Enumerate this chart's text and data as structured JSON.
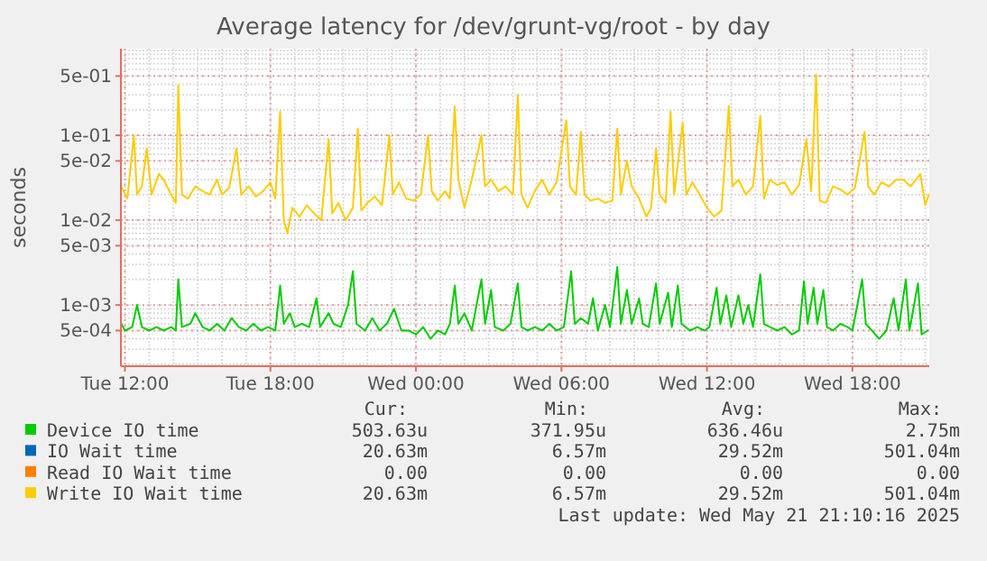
{
  "chart_data": {
    "type": "line",
    "title": "Average latency for /dev/grunt-vg/root - by day",
    "ylabel": "seconds",
    "log": "y",
    "grid": true,
    "legend": "bottom",
    "line_style": "solid",
    "marker": "none",
    "xlim": [
      "2025-05-20T11:50",
      "2025-05-21T21:10"
    ],
    "xticks": [
      {
        "value": "2025-05-20T12:00",
        "label": "Tue 12:00"
      },
      {
        "value": "2025-05-20T18:00",
        "label": "Tue 18:00"
      },
      {
        "value": "2025-05-21T00:00",
        "label": "Wed 00:00"
      },
      {
        "value": "2025-05-21T06:00",
        "label": "Wed 06:00"
      },
      {
        "value": "2025-05-21T12:00",
        "label": "Wed 12:00"
      },
      {
        "value": "2025-05-21T18:00",
        "label": "Wed 18:00"
      }
    ],
    "ylim": [
      0.00019,
      1.05
    ],
    "yticks": [
      {
        "value": 0.0005,
        "label": "5e-04"
      },
      {
        "value": 0.001,
        "label": "1e-03"
      },
      {
        "value": 0.005,
        "label": "5e-03"
      },
      {
        "value": 0.01,
        "label": "1e-02"
      },
      {
        "value": 0.05,
        "label": "5e-02"
      },
      {
        "value": 0.1,
        "label": "1e-01"
      },
      {
        "value": 0.5,
        "label": "5e-01"
      }
    ],
    "series": [
      {
        "name": "Device IO time",
        "color": "#00cc00",
        "x": [
          "2025-05-20T11:51",
          "2025-05-20T12:00",
          "2025-05-20T12:18",
          "2025-05-20T12:30",
          "2025-05-20T12:42",
          "2025-05-20T13:00",
          "2025-05-20T13:18",
          "2025-05-20T13:36",
          "2025-05-20T13:54",
          "2025-05-20T14:06",
          "2025-05-20T14:12",
          "2025-05-20T14:21",
          "2025-05-20T14:42",
          "2025-05-20T14:54",
          "2025-05-20T15:12",
          "2025-05-20T15:30",
          "2025-05-20T15:48",
          "2025-05-20T16:06",
          "2025-05-20T16:24",
          "2025-05-20T16:42",
          "2025-05-20T17:00",
          "2025-05-20T17:18",
          "2025-05-20T17:36",
          "2025-05-20T17:54",
          "2025-05-20T18:12",
          "2025-05-20T18:24",
          "2025-05-20T18:33",
          "2025-05-20T18:48",
          "2025-05-20T19:00",
          "2025-05-20T19:18",
          "2025-05-20T19:36",
          "2025-05-20T19:54",
          "2025-05-20T20:03",
          "2025-05-20T20:24",
          "2025-05-20T20:36",
          "2025-05-20T20:54",
          "2025-05-20T21:12",
          "2025-05-20T21:24",
          "2025-05-20T21:33",
          "2025-05-20T21:54",
          "2025-05-20T22:12",
          "2025-05-20T22:30",
          "2025-05-20T22:48",
          "2025-05-20T23:06",
          "2025-05-20T23:24",
          "2025-05-20T23:42",
          "2025-05-21T00:00",
          "2025-05-21T00:18",
          "2025-05-21T00:36",
          "2025-05-21T00:54",
          "2025-05-21T01:12",
          "2025-05-21T01:24",
          "2025-05-21T01:36",
          "2025-05-21T01:45",
          "2025-05-21T02:00",
          "2025-05-21T02:18",
          "2025-05-21T02:42",
          "2025-05-21T02:51",
          "2025-05-21T03:06",
          "2025-05-21T03:15",
          "2025-05-21T03:36",
          "2025-05-21T03:54",
          "2025-05-21T04:12",
          "2025-05-21T04:21",
          "2025-05-21T04:36",
          "2025-05-21T04:54",
          "2025-05-21T05:12",
          "2025-05-21T05:30",
          "2025-05-21T05:48",
          "2025-05-21T06:06",
          "2025-05-21T06:24",
          "2025-05-21T06:33",
          "2025-05-21T06:48",
          "2025-05-21T07:06",
          "2025-05-21T07:18",
          "2025-05-21T07:30",
          "2025-05-21T07:48",
          "2025-05-21T08:00",
          "2025-05-21T08:18",
          "2025-05-21T08:27",
          "2025-05-21T08:42",
          "2025-05-21T08:54",
          "2025-05-21T09:12",
          "2025-05-21T09:21",
          "2025-05-21T09:36",
          "2025-05-21T09:54",
          "2025-05-21T10:03",
          "2025-05-21T10:24",
          "2025-05-21T10:33",
          "2025-05-21T10:48",
          "2025-05-21T10:57",
          "2025-05-21T11:18",
          "2025-05-21T11:36",
          "2025-05-21T11:54",
          "2025-05-21T12:06",
          "2025-05-21T12:24",
          "2025-05-21T12:33",
          "2025-05-21T12:48",
          "2025-05-21T13:00",
          "2025-05-21T13:18",
          "2025-05-21T13:30",
          "2025-05-21T13:42",
          "2025-05-21T13:54",
          "2025-05-21T14:12",
          "2025-05-21T14:21",
          "2025-05-21T14:36",
          "2025-05-21T14:54",
          "2025-05-21T15:12",
          "2025-05-21T15:30",
          "2025-05-21T15:48",
          "2025-05-21T16:00",
          "2025-05-21T16:09",
          "2025-05-21T16:24",
          "2025-05-21T16:33",
          "2025-05-21T16:48",
          "2025-05-21T16:57",
          "2025-05-21T17:12",
          "2025-05-21T17:30",
          "2025-05-21T17:48",
          "2025-05-21T18:00",
          "2025-05-21T18:24",
          "2025-05-21T18:33",
          "2025-05-21T18:48",
          "2025-05-21T19:06",
          "2025-05-21T19:24",
          "2025-05-21T19:42",
          "2025-05-21T19:54",
          "2025-05-21T20:12",
          "2025-05-21T20:21",
          "2025-05-21T20:42",
          "2025-05-21T20:51",
          "2025-05-21T21:06"
        ],
        "values": [
          0.0006,
          0.0005,
          0.00055,
          0.001,
          0.00055,
          0.0005,
          0.00055,
          0.0005,
          0.00055,
          0.0005,
          0.002,
          0.00055,
          0.0006,
          0.0008,
          0.00055,
          0.0005,
          0.0006,
          0.0005,
          0.0007,
          0.00055,
          0.0005,
          0.0006,
          0.0005,
          0.00055,
          0.0005,
          0.0017,
          0.0006,
          0.0008,
          0.00055,
          0.0006,
          0.00055,
          0.0012,
          0.00055,
          0.0008,
          0.0006,
          0.00055,
          0.001,
          0.0025,
          0.0006,
          0.0005,
          0.0007,
          0.0005,
          0.0006,
          0.0009,
          0.0005,
          0.0005,
          0.00045,
          0.00055,
          0.0004,
          0.0005,
          0.00045,
          0.0006,
          0.0017,
          0.0006,
          0.0008,
          0.0005,
          0.002,
          0.0006,
          0.0015,
          0.00055,
          0.0005,
          0.0006,
          0.0018,
          0.00055,
          0.0005,
          0.00055,
          0.0005,
          0.0006,
          0.0005,
          0.00055,
          0.0025,
          0.0006,
          0.0007,
          0.0006,
          0.0012,
          0.0005,
          0.001,
          0.00055,
          0.0028,
          0.0006,
          0.0015,
          0.0006,
          0.0012,
          0.0006,
          0.00055,
          0.0018,
          0.0006,
          0.0014,
          0.00055,
          0.0017,
          0.0006,
          0.0005,
          0.00055,
          0.0005,
          0.00055,
          0.0016,
          0.0006,
          0.0013,
          0.00055,
          0.0013,
          0.0006,
          0.001,
          0.00055,
          0.0023,
          0.0006,
          0.00055,
          0.0005,
          0.00055,
          0.00045,
          0.0005,
          0.0019,
          0.0006,
          0.0016,
          0.0006,
          0.0015,
          0.00055,
          0.0005,
          0.0006,
          0.00055,
          0.0005,
          0.002,
          0.0006,
          0.0005,
          0.0004,
          0.0005,
          0.0012,
          0.0005,
          0.002,
          0.0005,
          0.0018,
          0.00045,
          0.0005
        ]
      },
      {
        "name": "IO Wait time",
        "color": "#0066b3"
      },
      {
        "name": "Read IO Wait time",
        "color": "#ff8000"
      },
      {
        "name": "Write IO Wait time",
        "color": "#ffcc00",
        "x": [
          "2025-05-20T11:51",
          "2025-05-20T12:06",
          "2025-05-20T12:22",
          "2025-05-20T12:30",
          "2025-05-20T12:42",
          "2025-05-20T12:54",
          "2025-05-20T13:06",
          "2025-05-20T13:24",
          "2025-05-20T13:36",
          "2025-05-20T13:54",
          "2025-05-20T14:06",
          "2025-05-20T14:12",
          "2025-05-20T14:21",
          "2025-05-20T14:36",
          "2025-05-20T14:54",
          "2025-05-20T15:12",
          "2025-05-20T15:30",
          "2025-05-20T15:48",
          "2025-05-20T16:00",
          "2025-05-20T16:18",
          "2025-05-20T16:36",
          "2025-05-20T16:48",
          "2025-05-20T17:06",
          "2025-05-20T17:24",
          "2025-05-20T17:42",
          "2025-05-20T18:00",
          "2025-05-20T18:12",
          "2025-05-20T18:24",
          "2025-05-20T18:33",
          "2025-05-20T18:42",
          "2025-05-20T18:54",
          "2025-05-20T19:12",
          "2025-05-20T19:30",
          "2025-05-20T19:48",
          "2025-05-20T20:06",
          "2025-05-20T20:24",
          "2025-05-20T20:33",
          "2025-05-20T20:48",
          "2025-05-20T21:06",
          "2025-05-20T21:24",
          "2025-05-20T21:36",
          "2025-05-20T21:45",
          "2025-05-20T22:00",
          "2025-05-20T22:18",
          "2025-05-20T22:36",
          "2025-05-20T22:54",
          "2025-05-20T23:03",
          "2025-05-20T23:18",
          "2025-05-20T23:36",
          "2025-05-20T23:54",
          "2025-05-21T00:12",
          "2025-05-21T00:30",
          "2025-05-21T00:39",
          "2025-05-21T00:54",
          "2025-05-21T01:12",
          "2025-05-21T01:24",
          "2025-05-21T01:36",
          "2025-05-21T01:45",
          "2025-05-21T02:00",
          "2025-05-21T02:18",
          "2025-05-21T02:42",
          "2025-05-21T02:51",
          "2025-05-21T03:06",
          "2025-05-21T03:24",
          "2025-05-21T03:42",
          "2025-05-21T04:00",
          "2025-05-21T04:12",
          "2025-05-21T04:21",
          "2025-05-21T04:36",
          "2025-05-21T04:54",
          "2025-05-21T05:12",
          "2025-05-21T05:30",
          "2025-05-21T05:48",
          "2025-05-21T06:12",
          "2025-05-21T06:21",
          "2025-05-21T06:36",
          "2025-05-21T06:48",
          "2025-05-21T06:57",
          "2025-05-21T07:12",
          "2025-05-21T07:30",
          "2025-05-21T07:48",
          "2025-05-21T08:06",
          "2025-05-21T08:18",
          "2025-05-21T08:27",
          "2025-05-21T08:42",
          "2025-05-21T08:54",
          "2025-05-21T09:12",
          "2025-05-21T09:30",
          "2025-05-21T09:42",
          "2025-05-21T09:54",
          "2025-05-21T10:03",
          "2025-05-21T10:18",
          "2025-05-21T10:30",
          "2025-05-21T10:39",
          "2025-05-21T11:00",
          "2025-05-21T11:09",
          "2025-05-21T11:24",
          "2025-05-21T11:42",
          "2025-05-21T12:00",
          "2025-05-21T12:18",
          "2025-05-21T12:36",
          "2025-05-21T12:54",
          "2025-05-21T13:03",
          "2025-05-21T13:18",
          "2025-05-21T13:36",
          "2025-05-21T13:54",
          "2025-05-21T14:12",
          "2025-05-21T14:21",
          "2025-05-21T14:36",
          "2025-05-21T14:54",
          "2025-05-21T15:12",
          "2025-05-21T15:30",
          "2025-05-21T15:48",
          "2025-05-21T16:06",
          "2025-05-21T16:18",
          "2025-05-21T16:30",
          "2025-05-21T16:39",
          "2025-05-21T16:54",
          "2025-05-21T17:12",
          "2025-05-21T17:30",
          "2025-05-21T17:48",
          "2025-05-21T18:06",
          "2025-05-21T18:30",
          "2025-05-21T18:39",
          "2025-05-21T18:54",
          "2025-05-21T19:12",
          "2025-05-21T19:30",
          "2025-05-21T19:48",
          "2025-05-21T20:06",
          "2025-05-21T20:24",
          "2025-05-21T20:48",
          "2025-05-21T21:00",
          "2025-05-21T21:09"
        ],
        "values": [
          0.025,
          0.018,
          0.1,
          0.02,
          0.025,
          0.07,
          0.02,
          0.035,
          0.03,
          0.02,
          0.016,
          0.39,
          0.02,
          0.018,
          0.025,
          0.022,
          0.02,
          0.03,
          0.02,
          0.024,
          0.07,
          0.02,
          0.025,
          0.019,
          0.022,
          0.028,
          0.018,
          0.19,
          0.01,
          0.007,
          0.014,
          0.011,
          0.015,
          0.012,
          0.01,
          0.09,
          0.012,
          0.016,
          0.01,
          0.014,
          0.12,
          0.013,
          0.016,
          0.019,
          0.015,
          0.1,
          0.02,
          0.028,
          0.018,
          0.017,
          0.02,
          0.1,
          0.022,
          0.017,
          0.022,
          0.018,
          0.22,
          0.03,
          0.014,
          0.03,
          0.1,
          0.025,
          0.03,
          0.022,
          0.025,
          0.02,
          0.3,
          0.02,
          0.014,
          0.022,
          0.03,
          0.02,
          0.028,
          0.15,
          0.025,
          0.02,
          0.11,
          0.02,
          0.017,
          0.018,
          0.016,
          0.017,
          0.12,
          0.02,
          0.05,
          0.025,
          0.018,
          0.011,
          0.014,
          0.07,
          0.02,
          0.016,
          0.19,
          0.02,
          0.14,
          0.02,
          0.028,
          0.02,
          0.014,
          0.011,
          0.013,
          0.22,
          0.025,
          0.03,
          0.02,
          0.025,
          0.17,
          0.018,
          0.03,
          0.026,
          0.028,
          0.02,
          0.026,
          0.09,
          0.022,
          0.52,
          0.017,
          0.016,
          0.025,
          0.023,
          0.02,
          0.024,
          0.11,
          0.025,
          0.02,
          0.028,
          0.025,
          0.03,
          0.03,
          0.025,
          0.035,
          0.015,
          0.02
        ]
      }
    ],
    "annotations": [
      "Cur:",
      "Min:",
      "Avg:",
      "Max:",
      "503.63u",
      "371.95u",
      "636.46u",
      "2.75m",
      "20.63m",
      "6.57m",
      "29.52m",
      "501.04m",
      "0.00",
      "0.00",
      "0.00",
      "0.00",
      "20.63m",
      "6.57m",
      "29.52m",
      "501.04m",
      "Last update: Wed May 21 21:10:16 2025"
    ]
  }
}
